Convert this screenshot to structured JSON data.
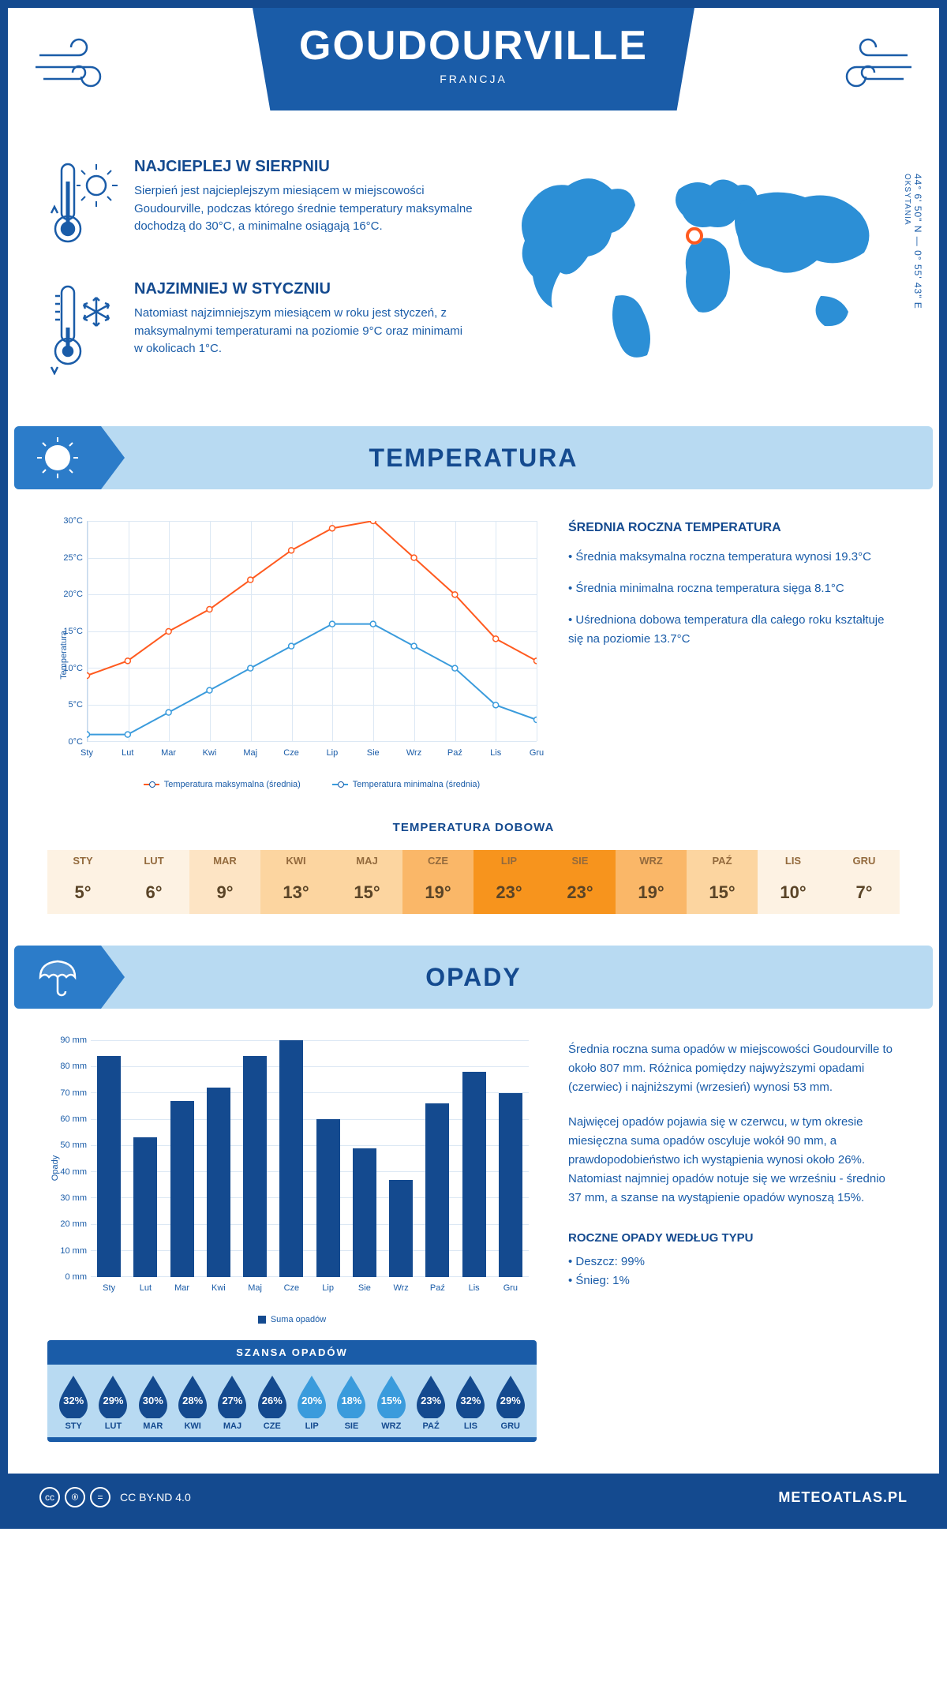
{
  "header": {
    "city": "GOUDOURVILLE",
    "country": "FRANCJA"
  },
  "coords": {
    "lat": "44° 6' 50\" N",
    "lon": "0° 55' 43\" E",
    "region": "OKSYTANIA"
  },
  "location_marker": {
    "lon_pct": 48,
    "lat_pct": 38
  },
  "warm": {
    "title": "NAJCIEPLEJ W SIERPNIU",
    "text": "Sierpień jest najcieplejszym miesiącem w miejscowości Goudourville, podczas którego średnie temperatury maksymalne dochodzą do 30°C, a minimalne osiągają 16°C."
  },
  "cold": {
    "title": "NAJZIMNIEJ W STYCZNIU",
    "text": "Natomiast najzimniejszym miesiącem w roku jest styczeń, z maksymalnymi temperaturami na poziomie 9°C oraz minimami w okolicach 1°C."
  },
  "temp_section": {
    "heading": "TEMPERATURA",
    "facts_title": "ŚREDNIA ROCZNA TEMPERATURA",
    "facts": [
      "• Średnia maksymalna roczna temperatura wynosi 19.3°C",
      "• Średnia minimalna roczna temperatura sięga 8.1°C",
      "• Uśredniona dobowa temperatura dla całego roku kształtuje się na poziomie 13.7°C"
    ],
    "chart": {
      "type": "line",
      "ylabel": "Temperatura",
      "months": [
        "Sty",
        "Lut",
        "Mar",
        "Kwi",
        "Maj",
        "Cze",
        "Lip",
        "Sie",
        "Wrz",
        "Paź",
        "Lis",
        "Gru"
      ],
      "ylim": [
        0,
        30
      ],
      "ytick_step": 5,
      "grid_color": "#dce8f4",
      "series": [
        {
          "name": "Temperatura maksymalna (średnia)",
          "color": "#ff5a1f",
          "values": [
            9,
            11,
            15,
            18,
            22,
            26,
            29,
            30,
            25,
            20,
            14,
            11
          ]
        },
        {
          "name": "Temperatura minimalna (średnia)",
          "color": "#3a9bdc",
          "values": [
            1,
            1,
            4,
            7,
            10,
            13,
            16,
            16,
            13,
            10,
            5,
            3
          ]
        }
      ]
    },
    "daily_title": "TEMPERATURA DOBOWA",
    "daily": {
      "months": [
        "STY",
        "LUT",
        "MAR",
        "KWI",
        "MAJ",
        "CZE",
        "LIP",
        "SIE",
        "WRZ",
        "PAŹ",
        "LIS",
        "GRU"
      ],
      "values": [
        "5°",
        "6°",
        "9°",
        "13°",
        "15°",
        "19°",
        "23°",
        "23°",
        "19°",
        "15°",
        "10°",
        "7°"
      ],
      "colors": [
        "#fdf2e3",
        "#fdf2e3",
        "#fde4c4",
        "#fcd5a0",
        "#fcd5a0",
        "#fab768",
        "#f7941d",
        "#f7941d",
        "#fab768",
        "#fcd5a0",
        "#fdf2e3",
        "#fdf2e3"
      ]
    }
  },
  "precip_section": {
    "heading": "OPADY",
    "para1": "Średnia roczna suma opadów w miejscowości Goudourville to około 807 mm. Różnica pomiędzy najwyższymi opadami (czerwiec) i najniższymi (wrzesień) wynosi 53 mm.",
    "para2": "Najwięcej opadów pojawia się w czerwcu, w tym okresie miesięczna suma opadów oscyluje wokół 90 mm, a prawdopodobieństwo ich wystąpienia wynosi około 26%. Natomiast najmniej opadów notuje się we wrześniu - średnio 37 mm, a szanse na wystąpienie opadów wynoszą 15%.",
    "type_title": "ROCZNE OPADY WEDŁUG TYPU",
    "types": [
      "• Deszcz: 99%",
      "• Śnieg: 1%"
    ],
    "chart": {
      "type": "bar",
      "ylabel": "Opady",
      "legend": "Suma opadów",
      "ylim": [
        0,
        90
      ],
      "ytick_step": 10,
      "bar_color": "#144a8f",
      "grid_color": "#dce8f4",
      "months": [
        "Sty",
        "Lut",
        "Mar",
        "Kwi",
        "Maj",
        "Cze",
        "Lip",
        "Sie",
        "Wrz",
        "Paź",
        "Lis",
        "Gru"
      ],
      "values": [
        84,
        53,
        67,
        72,
        84,
        90,
        60,
        49,
        37,
        66,
        78,
        70
      ]
    },
    "chance": {
      "title": "SZANSA OPADÓW",
      "months": [
        "STY",
        "LUT",
        "MAR",
        "KWI",
        "MAJ",
        "CZE",
        "LIP",
        "SIE",
        "WRZ",
        "PAŹ",
        "LIS",
        "GRU"
      ],
      "values": [
        "32%",
        "29%",
        "30%",
        "28%",
        "27%",
        "26%",
        "20%",
        "18%",
        "15%",
        "23%",
        "32%",
        "29%"
      ],
      "colors": [
        "#144a8f",
        "#144a8f",
        "#144a8f",
        "#144a8f",
        "#144a8f",
        "#144a8f",
        "#3a9bdc",
        "#3a9bdc",
        "#3a9bdc",
        "#144a8f",
        "#144a8f",
        "#144a8f"
      ]
    }
  },
  "footer": {
    "license": "CC BY-ND 4.0",
    "site": "METEOATLAS.PL"
  }
}
